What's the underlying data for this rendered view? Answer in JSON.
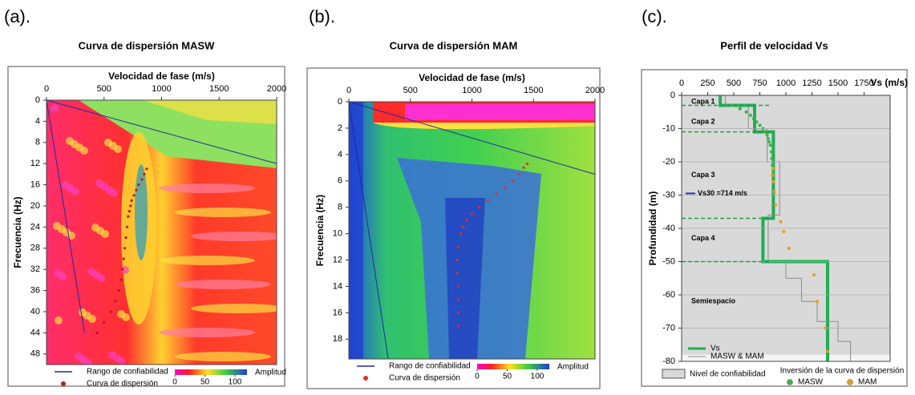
{
  "chart_data": [
    {
      "type": "dispersion",
      "label": "(a).",
      "title": "Curva de dispersión MASW",
      "x_label": "Velocidad de fase (m/s)",
      "y_label": "Frecuencia (Hz)",
      "xlim": [
        0,
        2000
      ],
      "xticks": [
        0,
        500,
        1000,
        1500,
        2000
      ],
      "ylim": [
        0,
        50
      ],
      "yticks": [
        0,
        4,
        8,
        12,
        16,
        20,
        24,
        28,
        32,
        36,
        40,
        44,
        48
      ],
      "y_inverted": true,
      "series": [
        {
          "name": "Rango de confiabilidad",
          "kind": "line",
          "color": "#1f2a9e",
          "x": [
            2000,
            0,
            330
          ],
          "y": [
            12,
            0,
            44
          ]
        },
        {
          "name": "Curva de dispersión",
          "kind": "scatter",
          "color": "#c0181b",
          "x": [
            870,
            850,
            830,
            800,
            780,
            760,
            740,
            730,
            720,
            710,
            700,
            690,
            680,
            670,
            660,
            650,
            630,
            600,
            560,
            500,
            440
          ],
          "y": [
            13,
            14,
            15,
            16,
            17,
            18,
            19,
            20,
            21,
            22,
            24,
            26,
            28,
            30,
            32,
            34,
            36,
            38,
            40,
            42,
            44
          ]
        }
      ],
      "colorbar": {
        "label": "Amplitud",
        "lim": [
          0,
          120
        ],
        "ticks": [
          0,
          50,
          100
        ]
      }
    },
    {
      "type": "dispersion",
      "label": "(b).",
      "title": "Curva de dispersión MAM",
      "x_label": "Velocidad de fase (m/s)",
      "y_label": "Frecuencia (Hz)",
      "xlim": [
        0,
        2000
      ],
      "xticks": [
        0,
        500,
        1000,
        1500,
        2000
      ],
      "ylim": [
        0,
        19.5
      ],
      "yticks": [
        0,
        2,
        4,
        6,
        8,
        10,
        12,
        14,
        16,
        18
      ],
      "y_inverted": true,
      "series": [
        {
          "name": "Rango de confiabilidad",
          "kind": "line",
          "color": "#1f2a9e",
          "x": [
            2000,
            0,
            320
          ],
          "y": [
            5.5,
            0,
            19.5
          ]
        },
        {
          "name": "Curva de dispersión",
          "kind": "scatter",
          "color": "#e0302a",
          "x": [
            1450,
            1420,
            1380,
            1330,
            1270,
            1200,
            1130,
            1060,
            1000,
            960,
            930,
            910,
            890,
            880,
            880,
            890,
            890,
            890,
            890
          ],
          "y": [
            4.7,
            5,
            5.5,
            6,
            6.5,
            7,
            7.5,
            8,
            8.5,
            9,
            9.5,
            10,
            11,
            12,
            13,
            14,
            15,
            16,
            17
          ]
        }
      ],
      "colorbar": {
        "label": "Amplitud",
        "lim": [
          0,
          120
        ],
        "ticks": [
          0,
          50,
          100
        ]
      }
    },
    {
      "type": "profile",
      "label": "(c).",
      "title": "Perfil de velocidad Vs",
      "x_label": "Vs (m/s)",
      "y_label": "Profundidad (m)",
      "xlim": [
        0,
        2000
      ],
      "xticks": [
        0,
        250,
        500,
        750,
        1000,
        1250,
        1500,
        1750
      ],
      "ylim": [
        -80,
        0
      ],
      "yticks": [
        0,
        -10,
        -20,
        -30,
        -40,
        -50,
        -60,
        -70,
        -80
      ],
      "y_inverted": false,
      "grid": true,
      "reliability_limit": -78,
      "reliability_label": "Nivel de confiabilidad",
      "layer_boundaries": [
        -3,
        -11,
        -37,
        -50
      ],
      "annotations": [
        "Capa  1",
        "Capa  2",
        "Capa  3",
        "Vs30 =714 m/s",
        "Capa  4",
        "Semiespacio"
      ],
      "legend_title": "Inversión de la curva de dispersión",
      "series": [
        {
          "name": "Vs",
          "kind": "line",
          "color": "#1fae55",
          "x": [
            370,
            370,
            700,
            700,
            880,
            880,
            780,
            780,
            1400,
            1400
          ],
          "y": [
            0,
            -3,
            -3,
            -11,
            -11,
            -37,
            -37,
            -50,
            -50,
            -80
          ]
        },
        {
          "name": "MASW & MAM",
          "kind": "line",
          "color": "#8c8c8c",
          "x": [
            420,
            420,
            640,
            640,
            820,
            820,
            940,
            940,
            830,
            830,
            1000,
            1000,
            1150,
            1150,
            1300,
            1300,
            1500,
            1500,
            1620,
            1620
          ],
          "y": [
            0,
            -3,
            -3,
            -10,
            -10,
            -20,
            -20,
            -36,
            -36,
            -50,
            -50,
            -55,
            -55,
            -62,
            -62,
            -68,
            -68,
            -74,
            -74,
            -80
          ]
        },
        {
          "name": "MASW",
          "kind": "scatter",
          "color": "#3cb34a",
          "x": [
            480,
            560,
            620,
            660,
            690,
            720,
            750,
            780,
            800,
            820,
            830,
            840,
            850,
            860,
            865,
            870,
            880
          ],
          "y": [
            -3,
            -4,
            -5,
            -6,
            -7,
            -8,
            -9,
            -10,
            -11,
            -12,
            -13,
            -14,
            -15,
            -17,
            -19,
            -21,
            -23
          ]
        },
        {
          "name": "MAM",
          "kind": "scatter",
          "color": "#e0a020",
          "x": [
            880,
            870,
            880,
            890,
            900,
            950,
            980,
            1030,
            1270,
            1300,
            1380,
            1400
          ],
          "y": [
            -22,
            -24,
            -26,
            -29,
            -33,
            -38,
            -41,
            -46,
            -54,
            -62,
            -70,
            -77
          ]
        }
      ]
    }
  ]
}
